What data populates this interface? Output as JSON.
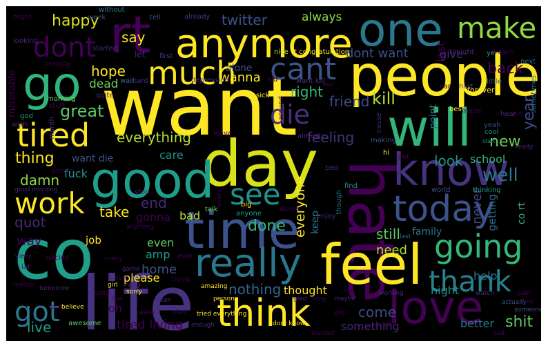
{
  "words": [
    {
      "t": "want",
      "c": "#fde725"
    },
    {
      "t": "life",
      "c": "#46327e"
    },
    {
      "t": "day",
      "c": "#d8e219"
    },
    {
      "t": "hate",
      "c": "#440154"
    },
    {
      "t": "people",
      "c": "#fde725"
    },
    {
      "t": "co",
      "c": "#1f9e89"
    },
    {
      "t": "good",
      "c": "#1f9e89"
    },
    {
      "t": "will",
      "c": "#31b57b"
    },
    {
      "t": "time",
      "c": "#3b528b"
    },
    {
      "t": "feel",
      "c": "#fde725"
    },
    {
      "t": "love",
      "c": "#440154"
    },
    {
      "t": "one",
      "c": "#2a788e"
    },
    {
      "t": "anymore",
      "c": "#fde725"
    },
    {
      "t": "rt",
      "c": "#440154"
    },
    {
      "t": "go",
      "c": "#31b57b"
    },
    {
      "t": "know",
      "c": "#46327e"
    },
    {
      "t": "think",
      "c": "#fde725"
    },
    {
      "t": "today",
      "c": "#3b528b"
    },
    {
      "t": "really",
      "c": "#2a788e"
    },
    {
      "t": "going",
      "c": "#35b779"
    },
    {
      "t": "much",
      "c": "#fde725"
    },
    {
      "t": "tired",
      "c": "#fde725"
    },
    {
      "t": "make",
      "c": "#90d743"
    },
    {
      "t": "cant",
      "c": "#3b528b"
    },
    {
      "t": "dont",
      "c": "#440154"
    },
    {
      "t": "work",
      "c": "#fde725"
    },
    {
      "t": "see",
      "c": "#21918c"
    },
    {
      "t": "thank",
      "c": "#26828e"
    },
    {
      "t": "got",
      "c": "#2a788e"
    },
    {
      "t": "die",
      "c": "#46327e"
    },
    {
      "t": "happy",
      "c": "#d8e219"
    },
    {
      "t": "twitter",
      "c": "#3b528b"
    },
    {
      "t": "always",
      "c": "#90d743"
    },
    {
      "t": "say",
      "c": "#fde725"
    },
    {
      "t": "hope",
      "c": "#fde725"
    },
    {
      "t": "dead",
      "c": "#6ece58"
    },
    {
      "t": "wanna",
      "c": "#fde725"
    },
    {
      "t": "alone",
      "c": "#3b528b"
    },
    {
      "t": "right",
      "c": "#35b779"
    },
    {
      "t": "friend",
      "c": "#3e4a89"
    },
    {
      "t": "kill",
      "c": "#b5de2b"
    },
    {
      "t": "great",
      "c": "#5ec962"
    },
    {
      "t": "everything",
      "c": "#b5de2b"
    },
    {
      "t": "thing",
      "c": "#fde725"
    },
    {
      "t": "feeling",
      "c": "#46327e"
    },
    {
      "t": "care",
      "c": "#21918c"
    },
    {
      "t": "want die",
      "c": "#3b528b"
    },
    {
      "t": "new",
      "c": "#6ece58"
    },
    {
      "t": "year",
      "c": "#3e4a89"
    },
    {
      "t": "damn",
      "c": "#90d743"
    },
    {
      "t": "fuck",
      "c": "#21918c"
    },
    {
      "t": "take",
      "c": "#fde725"
    },
    {
      "t": "end",
      "c": "#482878"
    },
    {
      "t": "look",
      "c": "#21918c"
    },
    {
      "t": "school",
      "c": "#35b779"
    },
    {
      "t": "well",
      "c": "#2a788e"
    },
    {
      "t": "quot",
      "c": "#482878"
    },
    {
      "t": "gonna",
      "c": "#440154"
    },
    {
      "t": "bad",
      "c": "#b5de2b"
    },
    {
      "t": "done",
      "c": "#35b779"
    },
    {
      "t": "everyone",
      "c": "#fde725"
    },
    {
      "t": "keep",
      "c": "#2a788e"
    },
    {
      "t": "never",
      "c": "#3e4a89"
    },
    {
      "t": "getting",
      "c": "#31688e"
    },
    {
      "t": "co rt",
      "c": "#35b779"
    },
    {
      "t": "job",
      "c": "#fde725"
    },
    {
      "t": "way",
      "c": "#440154"
    },
    {
      "t": "even",
      "c": "#5ec962"
    },
    {
      "t": "amp",
      "c": "#1f9e89"
    },
    {
      "t": "home",
      "c": "#3b528b"
    },
    {
      "t": "still",
      "c": "#5ec962"
    },
    {
      "t": "family",
      "c": "#2a788e"
    },
    {
      "t": "need",
      "c": "#b5de2b"
    },
    {
      "t": "please",
      "c": "#fde725"
    },
    {
      "t": "nothing",
      "c": "#31688e"
    },
    {
      "t": "thought",
      "c": "#fde725"
    },
    {
      "t": "night",
      "c": "#21918c"
    },
    {
      "t": "help",
      "c": "#31688e"
    },
    {
      "t": "oh",
      "c": "#440154"
    },
    {
      "t": "come",
      "c": "#3e4a89"
    },
    {
      "t": "live",
      "c": "#1f9e89"
    },
    {
      "t": "tired living",
      "c": "#440154"
    },
    {
      "t": "something",
      "c": "#482878"
    },
    {
      "t": "better",
      "c": "#2a788e"
    },
    {
      "t": "shit",
      "c": "#5ec962"
    },
    {
      "t": "last",
      "c": "#440154"
    },
    {
      "t": "give",
      "c": "#482878"
    },
    {
      "t": "back",
      "c": "#440154"
    },
    {
      "t": "dont want",
      "c": "#3b528b"
    },
    {
      "t": "point",
      "c": "#2a788e"
    },
    {
      "t": "miserable",
      "c": "#440154"
    },
    {
      "t": "without",
      "c": "#2a788e"
    },
    {
      "t": "week",
      "c": "#3b528b"
    },
    {
      "t": "tell",
      "c": "#3b528b"
    },
    {
      "t": "already",
      "c": "#46327e"
    },
    {
      "t": "looking",
      "c": "#482878"
    },
    {
      "t": "started",
      "c": "#482878"
    },
    {
      "t": "literally",
      "c": "#440154"
    },
    {
      "t": "wait",
      "c": "#31688e"
    },
    {
      "t": "hard",
      "c": "#482878"
    },
    {
      "t": "depression",
      "c": "#472d7b"
    },
    {
      "t": "first",
      "c": "#46327e"
    },
    {
      "t": "let",
      "c": "#482878"
    },
    {
      "t": "nice",
      "c": "#b5de2b"
    },
    {
      "t": "rt congratulation",
      "c": "#fde725"
    },
    {
      "t": "tonight",
      "c": "#482878"
    },
    {
      "t": "dream",
      "c": "#440154"
    },
    {
      "t": "next",
      "c": "#31688e"
    },
    {
      "t": "ye",
      "c": "#1f9e89"
    },
    {
      "t": "old",
      "c": "#440154"
    },
    {
      "t": "want kill",
      "c": "#46327e"
    },
    {
      "t": "car",
      "c": "#440154"
    },
    {
      "t": "hurt",
      "c": "#3e4a89"
    },
    {
      "t": "forever",
      "c": "#fde725"
    },
    {
      "t": "little",
      "c": "#3b528b"
    },
    {
      "t": "sometimes",
      "c": "#31688e"
    },
    {
      "t": "sick",
      "c": "#fde725"
    },
    {
      "t": "around",
      "c": "#440154"
    },
    {
      "t": "cause",
      "c": "#482878"
    },
    {
      "t": "best",
      "c": "#fde725"
    },
    {
      "t": "made",
      "c": "#440154"
    },
    {
      "t": "morning",
      "c": "#6ece58"
    },
    {
      "t": "stuff",
      "c": "#440154"
    },
    {
      "t": "god",
      "c": "#1f9e89"
    },
    {
      "t": "wish",
      "c": "#482878"
    },
    {
      "t": "quite",
      "c": "#482878"
    },
    {
      "t": "month",
      "c": "#482878"
    },
    {
      "t": "leave",
      "c": "#440154"
    },
    {
      "t": "almost",
      "c": "#482878"
    },
    {
      "t": "making",
      "c": "#3b528b"
    },
    {
      "t": "yeah",
      "c": "#3b528b"
    },
    {
      "t": "cool",
      "c": "#1f9e89"
    },
    {
      "t": "start",
      "c": "#21918c"
    },
    {
      "t": "ready",
      "c": "#482878"
    },
    {
      "t": "picture",
      "c": "#440154"
    },
    {
      "t": "good morning",
      "c": "#482878"
    },
    {
      "t": "yet",
      "c": "#440154"
    },
    {
      "t": "hi",
      "c": "#fde725"
    },
    {
      "t": "though",
      "c": "#2a788e"
    },
    {
      "t": "bed",
      "c": "#482878"
    },
    {
      "t": "find",
      "c": "#21918c"
    },
    {
      "t": "world",
      "c": "#3b528b"
    },
    {
      "t": "thinking",
      "c": "#1f9e89"
    },
    {
      "t": "stop",
      "c": "#482878"
    },
    {
      "t": "big",
      "c": "#fde725"
    },
    {
      "t": "anyone",
      "c": "#1f9e89"
    },
    {
      "t": "talk",
      "c": "#6ece58"
    },
    {
      "t": "worse",
      "c": "#440154"
    },
    {
      "t": "enjoy",
      "c": "#482878"
    },
    {
      "t": "anything",
      "c": "#440154"
    },
    {
      "t": "sleep",
      "c": "#440154"
    },
    {
      "t": "suicide",
      "c": "#440154"
    },
    {
      "t": "lot",
      "c": "#482878"
    },
    {
      "t": "many",
      "c": "#440154"
    },
    {
      "t": "man",
      "c": "#440154"
    },
    {
      "t": "game",
      "c": "#482878"
    },
    {
      "t": "living",
      "c": "#482878"
    },
    {
      "t": "sure",
      "c": "#440154"
    },
    {
      "t": "sorry",
      "c": "#fde725"
    },
    {
      "t": "girl",
      "c": "#fde725"
    },
    {
      "t": "reason",
      "c": "#440154"
    },
    {
      "t": "tomorrow",
      "c": "#482878"
    },
    {
      "t": "song",
      "c": "#440154"
    },
    {
      "t": "doe",
      "c": "#440154"
    },
    {
      "t": "mean",
      "c": "#482878"
    },
    {
      "t": "trying",
      "c": "#440154"
    },
    {
      "t": "amazing",
      "c": "#fde725"
    },
    {
      "t": "person",
      "c": "#fde725"
    },
    {
      "t": "glad",
      "c": "#482878"
    },
    {
      "t": "long",
      "c": "#440154"
    },
    {
      "t": "maybe",
      "c": "#482878"
    },
    {
      "t": "working",
      "c": "#482878"
    },
    {
      "t": "watch",
      "c": "#482878"
    },
    {
      "t": "pain",
      "c": "#440154"
    },
    {
      "t": "actually",
      "c": "#3b528b"
    },
    {
      "t": "said",
      "c": "#440154"
    },
    {
      "t": "believe",
      "c": "#fde725"
    },
    {
      "t": "awesome",
      "c": "#5ec962"
    },
    {
      "t": "wake",
      "c": "#440154"
    },
    {
      "t": "tried",
      "c": "#440154"
    },
    {
      "t": "tried everything",
      "c": "#fde725"
    },
    {
      "t": "enough",
      "c": "#482878"
    },
    {
      "t": "dont know",
      "c": "#fde725"
    },
    {
      "t": "wanted",
      "c": "#440154"
    },
    {
      "t": "guy",
      "c": "#440154"
    },
    {
      "t": "death",
      "c": "#440154"
    },
    {
      "t": "someone",
      "c": "#3b528b"
    },
    {
      "t": "hey",
      "c": "#440154"
    },
    {
      "t": "sad",
      "c": "#440154"
    },
    {
      "t": "u",
      "c": "#440154"
    },
    {
      "t": "every",
      "c": "#440154"
    },
    {
      "t": "hear",
      "c": "#482878"
    },
    {
      "t": "might",
      "c": "#440154"
    },
    {
      "t": "fun",
      "c": "#440154"
    },
    {
      "t": "feel",
      "c": "#440154"
    },
    {
      "t": "last",
      "c": "#31688e"
    }
  ]
}
